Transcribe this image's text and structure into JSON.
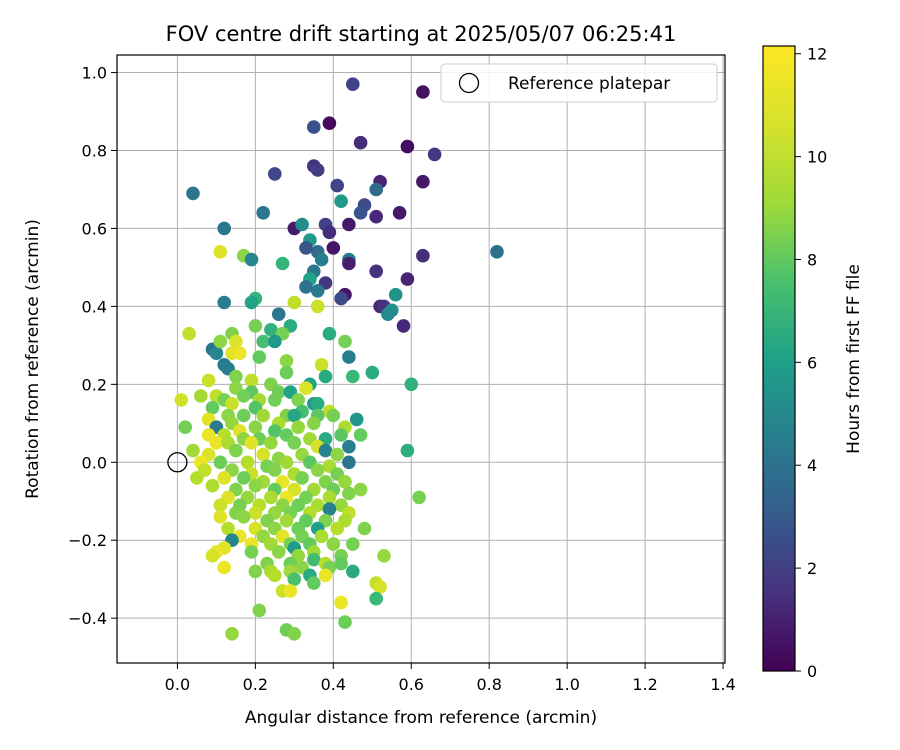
{
  "chart_data": {
    "type": "scatter",
    "title": "FOV centre drift starting at 2025/05/07 06:25:41",
    "xlabel": "Angular distance from reference (arcmin)",
    "ylabel": "Rotation from reference (arcmin)",
    "xlim": [
      -0.155,
      1.405
    ],
    "ylim": [
      -0.515,
      1.045
    ],
    "x_ticks": [
      0.0,
      0.2,
      0.4,
      0.6,
      0.8,
      1.0,
      1.2,
      1.4
    ],
    "x_tick_labels": [
      "0.0",
      "0.2",
      "0.4",
      "0.6",
      "0.8",
      "1.0",
      "1.2",
      "1.4"
    ],
    "y_ticks": [
      -0.4,
      -0.2,
      0.0,
      0.2,
      0.4,
      0.6,
      0.8,
      1.0
    ],
    "y_tick_labels": [
      "−0.4",
      "−0.2",
      "0.0",
      "0.2",
      "0.4",
      "0.6",
      "0.8",
      "1.0"
    ],
    "grid": true,
    "legend": {
      "placement": "top-right",
      "entries": [
        "Reference platepar"
      ]
    },
    "reference_point": {
      "x": 0.0,
      "y": 0.0,
      "label": "Reference platepar"
    },
    "colorbar": {
      "label": "Hours from first FF file",
      "colormap": "viridis",
      "range": [
        0,
        12.15
      ],
      "ticks": [
        0,
        2,
        4,
        6,
        8,
        10,
        12
      ],
      "tick_labels": [
        "0",
        "2",
        "4",
        "6",
        "8",
        "10",
        "12"
      ]
    },
    "points": [
      [
        0.45,
        0.97,
        2.5
      ],
      [
        0.63,
        0.95,
        0.6
      ],
      [
        0.39,
        0.87,
        0.3
      ],
      [
        0.35,
        0.86,
        3.0
      ],
      [
        0.59,
        0.81,
        0.4
      ],
      [
        0.47,
        0.82,
        1.5
      ],
      [
        0.66,
        0.79,
        2.0
      ],
      [
        0.35,
        0.76,
        1.8
      ],
      [
        0.36,
        0.75,
        2.2
      ],
      [
        0.25,
        0.74,
        2.6
      ],
      [
        0.52,
        0.72,
        1.2
      ],
      [
        0.63,
        0.72,
        0.8
      ],
      [
        0.41,
        0.71,
        2.5
      ],
      [
        0.51,
        0.7,
        4.2
      ],
      [
        0.48,
        0.66,
        2.8
      ],
      [
        0.04,
        0.69,
        4.8
      ],
      [
        0.47,
        0.64,
        3.2
      ],
      [
        0.57,
        0.64,
        0.8
      ],
      [
        0.22,
        0.64,
        4.8
      ],
      [
        0.51,
        0.63,
        1.4
      ],
      [
        0.44,
        0.61,
        0.8
      ],
      [
        0.12,
        0.6,
        4.8
      ],
      [
        0.3,
        0.6,
        0.9
      ],
      [
        0.32,
        0.61,
        6.0
      ],
      [
        0.38,
        0.61,
        2.4
      ],
      [
        0.39,
        0.59,
        1.6
      ],
      [
        0.42,
        0.67,
        6.5
      ],
      [
        0.4,
        0.55,
        0.7
      ],
      [
        0.34,
        0.57,
        6.6
      ],
      [
        0.36,
        0.54,
        4.2
      ],
      [
        0.33,
        0.55,
        3.2
      ],
      [
        0.11,
        0.54,
        11.5
      ],
      [
        0.44,
        0.52,
        5.2
      ],
      [
        0.44,
        0.51,
        1.0
      ],
      [
        0.63,
        0.53,
        1.6
      ],
      [
        0.82,
        0.54,
        4.5
      ],
      [
        0.17,
        0.53,
        10.0
      ],
      [
        0.19,
        0.52,
        5.6
      ],
      [
        0.27,
        0.51,
        8.0
      ],
      [
        0.37,
        0.52,
        5.2
      ],
      [
        0.51,
        0.49,
        1.8
      ],
      [
        0.35,
        0.49,
        4.8
      ],
      [
        0.34,
        0.47,
        7.0
      ],
      [
        0.59,
        0.47,
        1.2
      ],
      [
        0.38,
        0.46,
        2.0
      ],
      [
        0.36,
        0.44,
        5.0
      ],
      [
        0.33,
        0.45,
        4.5
      ],
      [
        0.43,
        0.43,
        0.8
      ],
      [
        0.42,
        0.42,
        2.8
      ],
      [
        0.56,
        0.43,
        6.2
      ],
      [
        0.2,
        0.42,
        8.0
      ],
      [
        0.19,
        0.41,
        7.0
      ],
      [
        0.12,
        0.41,
        5.2
      ],
      [
        0.3,
        0.41,
        11.0
      ],
      [
        0.52,
        0.4,
        1.4
      ],
      [
        0.53,
        0.4,
        1.8
      ],
      [
        0.55,
        0.39,
        6.0
      ],
      [
        0.54,
        0.38,
        5.8
      ],
      [
        0.26,
        0.38,
        4.8
      ],
      [
        0.36,
        0.4,
        11.2
      ],
      [
        0.39,
        0.33,
        7.5
      ],
      [
        0.58,
        0.35,
        1.4
      ],
      [
        0.24,
        0.34,
        7.8
      ],
      [
        0.29,
        0.35,
        7.5
      ],
      [
        0.2,
        0.35,
        9.6
      ],
      [
        0.03,
        0.33,
        11.0
      ],
      [
        0.14,
        0.33,
        9.8
      ],
      [
        0.27,
        0.33,
        9.6
      ],
      [
        0.22,
        0.31,
        8.5
      ],
      [
        0.25,
        0.31,
        6.5
      ],
      [
        0.43,
        0.31,
        9.6
      ],
      [
        0.09,
        0.29,
        4.8
      ],
      [
        0.1,
        0.28,
        5.6
      ],
      [
        0.11,
        0.31,
        10.0
      ],
      [
        0.15,
        0.31,
        11.5
      ],
      [
        0.14,
        0.28,
        11.6
      ],
      [
        0.16,
        0.28,
        11.8
      ],
      [
        0.21,
        0.27,
        9.2
      ],
      [
        0.28,
        0.26,
        10.0
      ],
      [
        0.37,
        0.25,
        11.2
      ],
      [
        0.44,
        0.27,
        5.2
      ],
      [
        0.12,
        0.25,
        5.0
      ],
      [
        0.13,
        0.24,
        5.2
      ],
      [
        0.15,
        0.22,
        9.8
      ],
      [
        0.19,
        0.21,
        11.0
      ],
      [
        0.24,
        0.2,
        9.8
      ],
      [
        0.28,
        0.23,
        9.4
      ],
      [
        0.34,
        0.2,
        7.0
      ],
      [
        0.38,
        0.22,
        7.4
      ],
      [
        0.45,
        0.22,
        8.2
      ],
      [
        0.5,
        0.23,
        7.5
      ],
      [
        0.6,
        0.2,
        7.8
      ],
      [
        0.08,
        0.21,
        11.2
      ],
      [
        0.15,
        0.19,
        10.0
      ],
      [
        0.19,
        0.18,
        9.0
      ],
      [
        0.26,
        0.18,
        9.4
      ],
      [
        0.29,
        0.18,
        7.0
      ],
      [
        0.33,
        0.19,
        11.5
      ],
      [
        0.06,
        0.17,
        10.5
      ],
      [
        0.1,
        0.17,
        11.0
      ],
      [
        0.17,
        0.17,
        9.5
      ],
      [
        0.21,
        0.16,
        10.5
      ],
      [
        0.01,
        0.16,
        11.3
      ],
      [
        0.12,
        0.16,
        9.6
      ],
      [
        0.14,
        0.15,
        11.2
      ],
      [
        0.25,
        0.16,
        9.5
      ],
      [
        0.31,
        0.16,
        9.8
      ],
      [
        0.35,
        0.15,
        6.8
      ],
      [
        0.36,
        0.15,
        7.4
      ],
      [
        0.09,
        0.14,
        9.2
      ],
      [
        0.2,
        0.14,
        8.8
      ],
      [
        0.32,
        0.13,
        8.5
      ],
      [
        0.39,
        0.13,
        11.0
      ],
      [
        0.13,
        0.12,
        10.0
      ],
      [
        0.17,
        0.12,
        9.4
      ],
      [
        0.22,
        0.12,
        10.4
      ],
      [
        0.28,
        0.12,
        9.8
      ],
      [
        0.36,
        0.12,
        9.0
      ],
      [
        0.4,
        0.12,
        9.6
      ],
      [
        0.46,
        0.11,
        6.4
      ],
      [
        0.08,
        0.11,
        11.6
      ],
      [
        0.14,
        0.1,
        10.2
      ],
      [
        0.26,
        0.1,
        10.6
      ],
      [
        0.3,
        0.12,
        7.2
      ],
      [
        0.35,
        0.1,
        9.9
      ],
      [
        0.02,
        0.09,
        9.5
      ],
      [
        0.1,
        0.09,
        5.0
      ],
      [
        0.16,
        0.08,
        11.6
      ],
      [
        0.2,
        0.09,
        10.0
      ],
      [
        0.25,
        0.08,
        8.8
      ],
      [
        0.31,
        0.09,
        10.2
      ],
      [
        0.43,
        0.09,
        10.6
      ],
      [
        0.08,
        0.07,
        11.8
      ],
      [
        0.12,
        0.07,
        10.8
      ],
      [
        0.17,
        0.06,
        10.0
      ],
      [
        0.21,
        0.06,
        9.4
      ],
      [
        0.28,
        0.07,
        9.2
      ],
      [
        0.34,
        0.06,
        10.4
      ],
      [
        0.38,
        0.06,
        7.4
      ],
      [
        0.42,
        0.07,
        9.0
      ],
      [
        0.47,
        0.07,
        9.2
      ],
      [
        0.1,
        0.05,
        11.8
      ],
      [
        0.13,
        0.05,
        10.6
      ],
      [
        0.19,
        0.05,
        11.6
      ],
      [
        0.24,
        0.05,
        10.2
      ],
      [
        0.3,
        0.05,
        9.6
      ],
      [
        0.36,
        0.04,
        11.4
      ],
      [
        0.44,
        0.04,
        5.2
      ],
      [
        0.59,
        0.03,
        7.6
      ],
      [
        0.04,
        0.03,
        10.4
      ],
      [
        0.08,
        0.02,
        11.5
      ],
      [
        0.15,
        0.03,
        9.8
      ],
      [
        0.22,
        0.02,
        11.4
      ],
      [
        0.26,
        0.01,
        10.0
      ],
      [
        0.32,
        0.02,
        10.2
      ],
      [
        0.38,
        0.03,
        5.4
      ],
      [
        0.41,
        0.02,
        10.0
      ],
      [
        0.06,
        0.0,
        11.8
      ],
      [
        0.11,
        0.0,
        9.4
      ],
      [
        0.18,
        0.0,
        10.8
      ],
      [
        0.23,
        -0.01,
        9.6
      ],
      [
        0.28,
        0.0,
        10.4
      ],
      [
        0.34,
        0.0,
        9.0
      ],
      [
        0.39,
        -0.01,
        10.6
      ],
      [
        0.44,
        0.0,
        4.8
      ],
      [
        0.07,
        -0.02,
        11.0
      ],
      [
        0.14,
        -0.02,
        10.0
      ],
      [
        0.19,
        -0.03,
        11.2
      ],
      [
        0.25,
        -0.02,
        9.8
      ],
      [
        0.3,
        -0.03,
        10.6
      ],
      [
        0.36,
        -0.02,
        10.0
      ],
      [
        0.41,
        -0.03,
        9.6
      ],
      [
        0.05,
        -0.04,
        10.8
      ],
      [
        0.12,
        -0.04,
        11.6
      ],
      [
        0.17,
        -0.04,
        9.4
      ],
      [
        0.22,
        -0.05,
        10.4
      ],
      [
        0.27,
        -0.05,
        11.8
      ],
      [
        0.32,
        -0.04,
        9.6
      ],
      [
        0.38,
        -0.05,
        9.8
      ],
      [
        0.43,
        -0.05,
        10.2
      ],
      [
        0.09,
        -0.06,
        10.6
      ],
      [
        0.15,
        -0.07,
        9.8
      ],
      [
        0.2,
        -0.06,
        10.0
      ],
      [
        0.25,
        -0.07,
        9.2
      ],
      [
        0.3,
        -0.07,
        11.4
      ],
      [
        0.35,
        -0.07,
        10.4
      ],
      [
        0.4,
        -0.07,
        9.4
      ],
      [
        0.47,
        -0.07,
        10.0
      ],
      [
        0.13,
        -0.09,
        11.6
      ],
      [
        0.18,
        -0.09,
        10.2
      ],
      [
        0.24,
        -0.09,
        10.6
      ],
      [
        0.28,
        -0.09,
        11.8
      ],
      [
        0.33,
        -0.09,
        9.6
      ],
      [
        0.39,
        -0.09,
        10.6
      ],
      [
        0.44,
        -0.08,
        9.8
      ],
      [
        0.62,
        -0.09,
        9.6
      ],
      [
        0.11,
        -0.11,
        11.2
      ],
      [
        0.16,
        -0.11,
        9.6
      ],
      [
        0.21,
        -0.11,
        10.8
      ],
      [
        0.27,
        -0.11,
        10.0
      ],
      [
        0.31,
        -0.11,
        9.4
      ],
      [
        0.36,
        -0.11,
        10.6
      ],
      [
        0.42,
        -0.11,
        10.2
      ],
      [
        0.15,
        -0.13,
        9.8
      ],
      [
        0.2,
        -0.13,
        11.2
      ],
      [
        0.25,
        -0.13,
        10.2
      ],
      [
        0.29,
        -0.13,
        9.6
      ],
      [
        0.34,
        -0.13,
        10.8
      ],
      [
        0.39,
        -0.12,
        5.4
      ],
      [
        0.44,
        -0.13,
        11.0
      ],
      [
        0.11,
        -0.14,
        11.6
      ],
      [
        0.17,
        -0.14,
        10.0
      ],
      [
        0.23,
        -0.15,
        9.8
      ],
      [
        0.28,
        -0.15,
        10.4
      ],
      [
        0.33,
        -0.15,
        9.2
      ],
      [
        0.38,
        -0.15,
        9.8
      ],
      [
        0.43,
        -0.15,
        10.6
      ],
      [
        0.13,
        -0.17,
        10.8
      ],
      [
        0.2,
        -0.17,
        11.4
      ],
      [
        0.25,
        -0.17,
        10.0
      ],
      [
        0.31,
        -0.17,
        9.4
      ],
      [
        0.36,
        -0.17,
        6.8
      ],
      [
        0.41,
        -0.17,
        10.8
      ],
      [
        0.48,
        -0.17,
        9.8
      ],
      [
        0.16,
        -0.19,
        11.8
      ],
      [
        0.22,
        -0.19,
        10.2
      ],
      [
        0.27,
        -0.19,
        11.6
      ],
      [
        0.32,
        -0.19,
        9.6
      ],
      [
        0.37,
        -0.19,
        10.6
      ],
      [
        0.14,
        -0.2,
        5.6
      ],
      [
        0.19,
        -0.21,
        11.8
      ],
      [
        0.24,
        -0.21,
        10.4
      ],
      [
        0.29,
        -0.21,
        9.6
      ],
      [
        0.34,
        -0.21,
        9.2
      ],
      [
        0.4,
        -0.21,
        10.0
      ],
      [
        0.45,
        -0.21,
        9.6
      ],
      [
        0.12,
        -0.22,
        11.6
      ],
      [
        0.3,
        -0.22,
        6.6
      ],
      [
        0.1,
        -0.23,
        11.8
      ],
      [
        0.19,
        -0.23,
        9.6
      ],
      [
        0.26,
        -0.23,
        10.0
      ],
      [
        0.35,
        -0.23,
        10.4
      ],
      [
        0.09,
        -0.24,
        11.4
      ],
      [
        0.31,
        -0.24,
        10.2
      ],
      [
        0.42,
        -0.24,
        9.6
      ],
      [
        0.53,
        -0.24,
        10.2
      ],
      [
        0.35,
        -0.25,
        8.4
      ],
      [
        0.29,
        -0.26,
        9.4
      ],
      [
        0.38,
        -0.26,
        10.8
      ],
      [
        0.23,
        -0.26,
        9.8
      ],
      [
        0.42,
        -0.26,
        9.2
      ],
      [
        0.12,
        -0.27,
        11.8
      ],
      [
        0.32,
        -0.27,
        10.0
      ],
      [
        0.39,
        -0.27,
        9.6
      ],
      [
        0.24,
        -0.28,
        10.6
      ],
      [
        0.2,
        -0.28,
        9.8
      ],
      [
        0.38,
        -0.29,
        11.8
      ],
      [
        0.29,
        -0.28,
        10.4
      ],
      [
        0.45,
        -0.28,
        7.4
      ],
      [
        0.25,
        -0.29,
        10.8
      ],
      [
        0.34,
        -0.29,
        7.4
      ],
      [
        0.3,
        -0.3,
        8.6
      ],
      [
        0.35,
        -0.31,
        9.2
      ],
      [
        0.51,
        -0.31,
        11.0
      ],
      [
        0.52,
        -0.32,
        11.4
      ],
      [
        0.27,
        -0.33,
        11.2
      ],
      [
        0.29,
        -0.33,
        11.8
      ],
      [
        0.51,
        -0.35,
        8.2
      ],
      [
        0.42,
        -0.36,
        11.8
      ],
      [
        0.21,
        -0.38,
        9.8
      ],
      [
        0.43,
        -0.41,
        9.4
      ],
      [
        0.28,
        -0.43,
        9.4
      ],
      [
        0.14,
        -0.44,
        10.2
      ],
      [
        0.3,
        -0.44,
        9.8
      ]
    ]
  }
}
